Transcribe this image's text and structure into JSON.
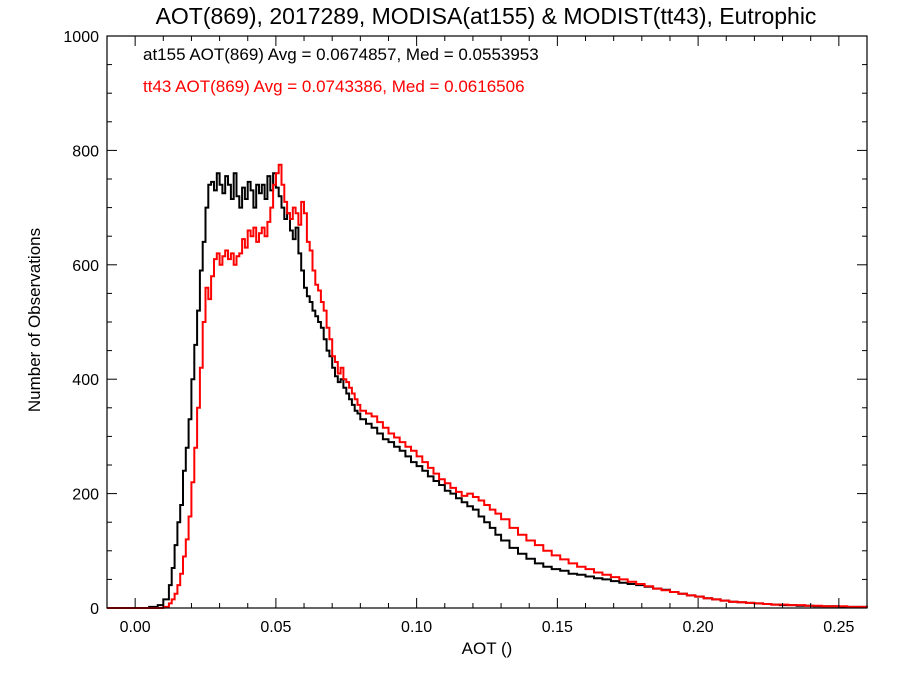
{
  "chart_data": {
    "type": "line",
    "title": "AOT(869), 2017289, MODISA(at155) & MODIST(tt43), Eutrophic",
    "xlabel": "AOT ()",
    "ylabel": "Number of Observations",
    "xlim": [
      -0.01,
      0.26
    ],
    "ylim": [
      0,
      1000
    ],
    "xticks": [
      0.0,
      0.05,
      0.1,
      0.15,
      0.2,
      0.25
    ],
    "xtick_labels": [
      "0.00",
      "0.05",
      "0.10",
      "0.15",
      "0.20",
      "0.25"
    ],
    "yticks": [
      0,
      200,
      400,
      600,
      800,
      1000
    ],
    "ytick_labels": [
      "0",
      "200",
      "400",
      "600",
      "800",
      "1000"
    ],
    "grid": false,
    "annotations": [
      "at155 AOT(869) Avg = 0.0674857, Med = 0.0553953",
      "tt43 AOT(869) Avg = 0.0743386, Med = 0.0616506"
    ],
    "colors": {
      "at155": "#000000",
      "tt43": "#ff0000"
    },
    "series": [
      {
        "color": "#000000",
        "step": true,
        "points": [
          [
            -0.01,
            0
          ],
          [
            0.0,
            0
          ],
          [
            0.005,
            2
          ],
          [
            0.008,
            5
          ],
          [
            0.01,
            15
          ],
          [
            0.012,
            40
          ],
          [
            0.013,
            70
          ],
          [
            0.014,
            110
          ],
          [
            0.015,
            150
          ],
          [
            0.016,
            180
          ],
          [
            0.017,
            240
          ],
          [
            0.018,
            280
          ],
          [
            0.019,
            330
          ],
          [
            0.02,
            400
          ],
          [
            0.021,
            460
          ],
          [
            0.022,
            520
          ],
          [
            0.023,
            590
          ],
          [
            0.024,
            640
          ],
          [
            0.025,
            700
          ],
          [
            0.026,
            740
          ],
          [
            0.027,
            745
          ],
          [
            0.028,
            730
          ],
          [
            0.029,
            760
          ],
          [
            0.03,
            740
          ],
          [
            0.031,
            725
          ],
          [
            0.032,
            755
          ],
          [
            0.033,
            740
          ],
          [
            0.034,
            715
          ],
          [
            0.035,
            760
          ],
          [
            0.036,
            720
          ],
          [
            0.037,
            700
          ],
          [
            0.038,
            735
          ],
          [
            0.039,
            715
          ],
          [
            0.04,
            745
          ],
          [
            0.041,
            730
          ],
          [
            0.042,
            700
          ],
          [
            0.043,
            740
          ],
          [
            0.044,
            725
          ],
          [
            0.045,
            740
          ],
          [
            0.046,
            715
          ],
          [
            0.047,
            755
          ],
          [
            0.048,
            730
          ],
          [
            0.049,
            760
          ],
          [
            0.05,
            735
          ],
          [
            0.051,
            720
          ],
          [
            0.052,
            700
          ],
          [
            0.053,
            680
          ],
          [
            0.054,
            690
          ],
          [
            0.055,
            660
          ],
          [
            0.056,
            645
          ],
          [
            0.057,
            665
          ],
          [
            0.058,
            620
          ],
          [
            0.059,
            590
          ],
          [
            0.06,
            560
          ],
          [
            0.061,
            545
          ],
          [
            0.062,
            535
          ],
          [
            0.063,
            520
          ],
          [
            0.064,
            510
          ],
          [
            0.065,
            500
          ],
          [
            0.066,
            490
          ],
          [
            0.067,
            470
          ],
          [
            0.068,
            450
          ],
          [
            0.069,
            440
          ],
          [
            0.07,
            420
          ],
          [
            0.071,
            405
          ],
          [
            0.072,
            395
          ],
          [
            0.073,
            400
          ],
          [
            0.074,
            385
          ],
          [
            0.075,
            375
          ],
          [
            0.076,
            365
          ],
          [
            0.077,
            355
          ],
          [
            0.078,
            345
          ],
          [
            0.079,
            340
          ],
          [
            0.08,
            330
          ],
          [
            0.082,
            322
          ],
          [
            0.084,
            315
          ],
          [
            0.086,
            305
          ],
          [
            0.088,
            295
          ],
          [
            0.09,
            290
          ],
          [
            0.092,
            282
          ],
          [
            0.094,
            275
          ],
          [
            0.096,
            265
          ],
          [
            0.098,
            255
          ],
          [
            0.1,
            248
          ],
          [
            0.102,
            240
          ],
          [
            0.104,
            230
          ],
          [
            0.106,
            222
          ],
          [
            0.108,
            215
          ],
          [
            0.11,
            205
          ],
          [
            0.112,
            200
          ],
          [
            0.114,
            192
          ],
          [
            0.116,
            185
          ],
          [
            0.118,
            178
          ],
          [
            0.12,
            172
          ],
          [
            0.122,
            160
          ],
          [
            0.124,
            150
          ],
          [
            0.126,
            140
          ],
          [
            0.128,
            128
          ],
          [
            0.13,
            118
          ],
          [
            0.133,
            105
          ],
          [
            0.136,
            95
          ],
          [
            0.139,
            86
          ],
          [
            0.142,
            78
          ],
          [
            0.145,
            72
          ],
          [
            0.148,
            68
          ],
          [
            0.151,
            65
          ],
          [
            0.154,
            60
          ],
          [
            0.157,
            58
          ],
          [
            0.16,
            55
          ],
          [
            0.163,
            52
          ],
          [
            0.166,
            50
          ],
          [
            0.169,
            47
          ],
          [
            0.172,
            44
          ],
          [
            0.175,
            42
          ],
          [
            0.178,
            40
          ],
          [
            0.181,
            37
          ],
          [
            0.184,
            34
          ],
          [
            0.187,
            32
          ],
          [
            0.19,
            28
          ],
          [
            0.193,
            25
          ],
          [
            0.196,
            22
          ],
          [
            0.199,
            20
          ],
          [
            0.202,
            17
          ],
          [
            0.205,
            15
          ],
          [
            0.208,
            13
          ],
          [
            0.211,
            11
          ],
          [
            0.214,
            10
          ],
          [
            0.217,
            9
          ],
          [
            0.22,
            8
          ],
          [
            0.223,
            7
          ],
          [
            0.226,
            6
          ],
          [
            0.229,
            5
          ],
          [
            0.232,
            5
          ],
          [
            0.235,
            4
          ],
          [
            0.238,
            4
          ],
          [
            0.241,
            3
          ],
          [
            0.244,
            3
          ],
          [
            0.247,
            3
          ],
          [
            0.25,
            2
          ],
          [
            0.253,
            2
          ],
          [
            0.256,
            2
          ],
          [
            0.26,
            1
          ]
        ]
      },
      {
        "color": "#ff0000",
        "step": true,
        "points": [
          [
            -0.01,
            0
          ],
          [
            0.0,
            0
          ],
          [
            0.005,
            0
          ],
          [
            0.01,
            2
          ],
          [
            0.012,
            8
          ],
          [
            0.013,
            15
          ],
          [
            0.014,
            25
          ],
          [
            0.015,
            40
          ],
          [
            0.016,
            60
          ],
          [
            0.017,
            90
          ],
          [
            0.018,
            120
          ],
          [
            0.019,
            160
          ],
          [
            0.02,
            220
          ],
          [
            0.021,
            280
          ],
          [
            0.022,
            350
          ],
          [
            0.023,
            420
          ],
          [
            0.024,
            500
          ],
          [
            0.025,
            560
          ],
          [
            0.026,
            540
          ],
          [
            0.027,
            580
          ],
          [
            0.028,
            610
          ],
          [
            0.029,
            620
          ],
          [
            0.03,
            600
          ],
          [
            0.031,
            615
          ],
          [
            0.032,
            625
          ],
          [
            0.033,
            610
          ],
          [
            0.034,
            620
          ],
          [
            0.035,
            600
          ],
          [
            0.036,
            615
          ],
          [
            0.037,
            620
          ],
          [
            0.038,
            645
          ],
          [
            0.039,
            630
          ],
          [
            0.04,
            660
          ],
          [
            0.041,
            650
          ],
          [
            0.042,
            665
          ],
          [
            0.043,
            640
          ],
          [
            0.044,
            655
          ],
          [
            0.045,
            665
          ],
          [
            0.046,
            650
          ],
          [
            0.047,
            675
          ],
          [
            0.048,
            700
          ],
          [
            0.049,
            740
          ],
          [
            0.05,
            760
          ],
          [
            0.051,
            775
          ],
          [
            0.052,
            740
          ],
          [
            0.053,
            710
          ],
          [
            0.054,
            690
          ],
          [
            0.055,
            680
          ],
          [
            0.056,
            700
          ],
          [
            0.057,
            690
          ],
          [
            0.058,
            670
          ],
          [
            0.059,
            710
          ],
          [
            0.06,
            690
          ],
          [
            0.061,
            640
          ],
          [
            0.062,
            625
          ],
          [
            0.063,
            590
          ],
          [
            0.064,
            565
          ],
          [
            0.065,
            555
          ],
          [
            0.066,
            535
          ],
          [
            0.067,
            520
          ],
          [
            0.068,
            490
          ],
          [
            0.069,
            470
          ],
          [
            0.07,
            440
          ],
          [
            0.071,
            430
          ],
          [
            0.072,
            410
          ],
          [
            0.073,
            420
          ],
          [
            0.074,
            400
          ],
          [
            0.075,
            395
          ],
          [
            0.076,
            385
          ],
          [
            0.077,
            375
          ],
          [
            0.078,
            365
          ],
          [
            0.079,
            355
          ],
          [
            0.08,
            345
          ],
          [
            0.082,
            340
          ],
          [
            0.084,
            335
          ],
          [
            0.086,
            325
          ],
          [
            0.088,
            315
          ],
          [
            0.09,
            305
          ],
          [
            0.092,
            298
          ],
          [
            0.094,
            290
          ],
          [
            0.096,
            282
          ],
          [
            0.098,
            275
          ],
          [
            0.1,
            265
          ],
          [
            0.102,
            255
          ],
          [
            0.104,
            245
          ],
          [
            0.106,
            235
          ],
          [
            0.108,
            225
          ],
          [
            0.11,
            218
          ],
          [
            0.112,
            210
          ],
          [
            0.114,
            203
          ],
          [
            0.116,
            196
          ],
          [
            0.118,
            200
          ],
          [
            0.12,
            194
          ],
          [
            0.122,
            188
          ],
          [
            0.124,
            180
          ],
          [
            0.126,
            172
          ],
          [
            0.128,
            165
          ],
          [
            0.13,
            155
          ],
          [
            0.133,
            140
          ],
          [
            0.136,
            128
          ],
          [
            0.139,
            118
          ],
          [
            0.142,
            110
          ],
          [
            0.145,
            100
          ],
          [
            0.148,
            92
          ],
          [
            0.151,
            85
          ],
          [
            0.154,
            78
          ],
          [
            0.157,
            72
          ],
          [
            0.16,
            68
          ],
          [
            0.163,
            62
          ],
          [
            0.166,
            58
          ],
          [
            0.169,
            54
          ],
          [
            0.172,
            50
          ],
          [
            0.175,
            46
          ],
          [
            0.178,
            42
          ],
          [
            0.181,
            38
          ],
          [
            0.184,
            34
          ],
          [
            0.187,
            31
          ],
          [
            0.19,
            28
          ],
          [
            0.193,
            25
          ],
          [
            0.196,
            22
          ],
          [
            0.199,
            20
          ],
          [
            0.202,
            17
          ],
          [
            0.205,
            15
          ],
          [
            0.208,
            13
          ],
          [
            0.211,
            11
          ],
          [
            0.214,
            10
          ],
          [
            0.217,
            9
          ],
          [
            0.22,
            8
          ],
          [
            0.223,
            7
          ],
          [
            0.226,
            6
          ],
          [
            0.229,
            6
          ],
          [
            0.232,
            5
          ],
          [
            0.235,
            5
          ],
          [
            0.238,
            4
          ],
          [
            0.241,
            4
          ],
          [
            0.244,
            3
          ],
          [
            0.247,
            3
          ],
          [
            0.25,
            3
          ],
          [
            0.253,
            2
          ],
          [
            0.256,
            2
          ],
          [
            0.26,
            1
          ]
        ]
      }
    ]
  }
}
